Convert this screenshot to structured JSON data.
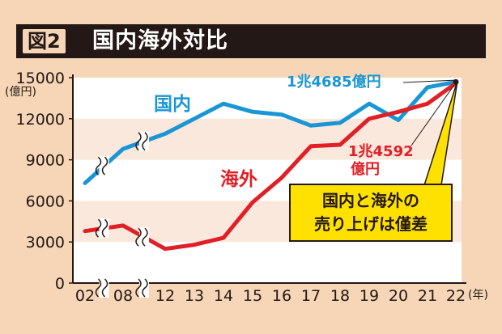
{
  "header": {
    "figure_badge": "図2",
    "title": "国内海外対比"
  },
  "chart_data": {
    "type": "line",
    "x": [
      "02",
      "08",
      "12",
      "13",
      "14",
      "15",
      "16",
      "17",
      "18",
      "19",
      "20",
      "21",
      "22"
    ],
    "x_unit": "(年)",
    "y_unit": "(億円)",
    "yticks": [
      0,
      3000,
      6000,
      9000,
      12000,
      15000
    ],
    "ylim": [
      0,
      15000
    ],
    "grid": "horizontal bands",
    "series": [
      {
        "name": "国内",
        "color": "#1a96d5",
        "values": [
          7300,
          9800,
          10900,
          12000,
          13100,
          12500,
          12300,
          11500,
          11700,
          13100,
          11900,
          14300,
          14685
        ]
      },
      {
        "name": "海外",
        "color": "#e01f26",
        "values": [
          3800,
          4200,
          2500,
          2800,
          3300,
          5900,
          7700,
          10000,
          10100,
          12000,
          12500,
          13100,
          14592
        ]
      }
    ],
    "annotations": {
      "domestic_total": "1兆4685億円",
      "overseas_total_line1": "1兆4592",
      "overseas_total_line2": "億円",
      "note_line1": "国内と海外の",
      "note_line2": "売り上げは僅差"
    }
  }
}
